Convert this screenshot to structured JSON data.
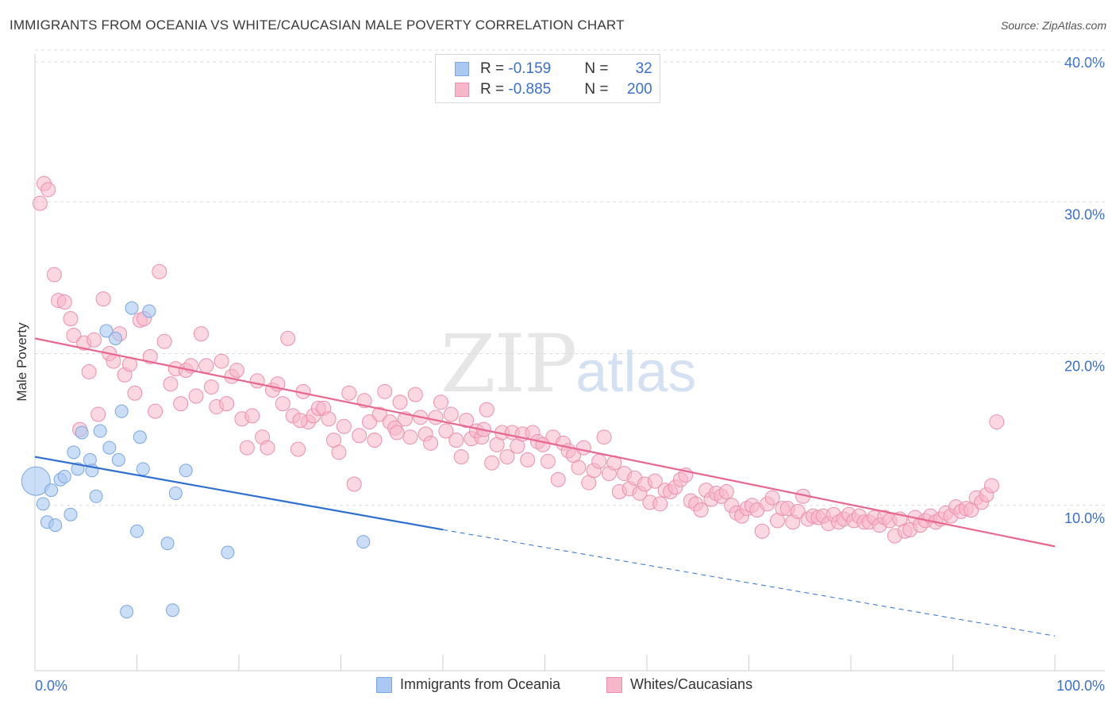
{
  "header": {
    "title": "IMMIGRANTS FROM OCEANIA VS WHITE/CAUCASIAN MALE POVERTY CORRELATION CHART",
    "source": "Source: ZipAtlas.com"
  },
  "legend_top": {
    "rows": [
      {
        "r_label": "R = ",
        "r_value": "-0.159",
        "n_label": "N = ",
        "n_value": "32"
      },
      {
        "r_label": "R = ",
        "r_value": "-0.885",
        "n_label": "N = ",
        "n_value": "200"
      }
    ]
  },
  "watermark": {
    "zip": "ZIP",
    "atlas": "atlas"
  },
  "colors": {
    "blue_fill": "#a9c8f2",
    "blue_stroke": "#7aa7e0",
    "blue_line": "#2f6fd1",
    "pink_fill": "#f7b7cb",
    "pink_stroke": "#ec8fae",
    "pink_line": "#e8678f",
    "grid": "#dcdcdc",
    "tick_label": "#3a6fd0"
  },
  "chart_data": {
    "type": "scatter",
    "title": "IMMIGRANTS FROM OCEANIA VS WHITE/CAUCASIAN MALE POVERTY CORRELATION CHART",
    "xlabel": "",
    "ylabel": "Male Poverty",
    "xlim": [
      0,
      100
    ],
    "ylim": [
      0,
      40
    ],
    "x_tick_labels": [
      "0.0%",
      "100.0%"
    ],
    "y_ticks": [
      10,
      20,
      30,
      40
    ],
    "y_tick_labels": [
      "10.0%",
      "20.0%",
      "30.0%",
      "40.0%"
    ],
    "legend": [
      "Immigrants from Oceania",
      "Whites/Caucasians"
    ],
    "series": [
      {
        "name": "Immigrants from Oceania",
        "color": "#a9c8f2",
        "points": [
          [
            0.1,
            11.6
          ],
          [
            0.8,
            10.1
          ],
          [
            1.2,
            8.9
          ],
          [
            1.6,
            11.0
          ],
          [
            2.0,
            8.7
          ],
          [
            2.5,
            11.7
          ],
          [
            2.9,
            11.9
          ],
          [
            3.5,
            9.4
          ],
          [
            3.8,
            13.5
          ],
          [
            4.2,
            12.4
          ],
          [
            4.6,
            14.8
          ],
          [
            5.4,
            13.0
          ],
          [
            5.6,
            12.3
          ],
          [
            6.0,
            10.6
          ],
          [
            6.4,
            14.9
          ],
          [
            7.0,
            21.5
          ],
          [
            7.3,
            13.8
          ],
          [
            7.9,
            21.0
          ],
          [
            8.2,
            13.0
          ],
          [
            8.5,
            16.2
          ],
          [
            9.0,
            3.0
          ],
          [
            9.5,
            23.0
          ],
          [
            10.0,
            8.3
          ],
          [
            10.3,
            14.5
          ],
          [
            10.6,
            12.4
          ],
          [
            11.2,
            22.8
          ],
          [
            13.0,
            7.5
          ],
          [
            13.5,
            3.1
          ],
          [
            13.8,
            10.8
          ],
          [
            14.8,
            12.3
          ],
          [
            18.9,
            6.9
          ],
          [
            32.2,
            7.6
          ]
        ],
        "trend": {
          "x0": 0,
          "y0": 13.2,
          "x1": 40,
          "y1": 8.4,
          "dash_to_x": 100,
          "dash_to_y": 1.4
        }
      },
      {
        "name": "Whites/Caucasians",
        "color": "#f7b7cb",
        "points": [
          [
            0.5,
            29.9
          ],
          [
            0.9,
            31.2
          ],
          [
            1.3,
            30.8
          ],
          [
            1.9,
            25.2
          ],
          [
            2.3,
            23.5
          ],
          [
            2.9,
            23.4
          ],
          [
            3.5,
            22.3
          ],
          [
            3.8,
            21.2
          ],
          [
            4.4,
            15.0
          ],
          [
            4.8,
            20.7
          ],
          [
            5.3,
            18.8
          ],
          [
            5.8,
            20.9
          ],
          [
            6.2,
            16.0
          ],
          [
            6.7,
            23.6
          ],
          [
            7.3,
            20.0
          ],
          [
            7.7,
            19.5
          ],
          [
            8.3,
            21.3
          ],
          [
            8.8,
            18.6
          ],
          [
            9.3,
            19.3
          ],
          [
            9.8,
            17.4
          ],
          [
            10.3,
            22.2
          ],
          [
            10.7,
            22.3
          ],
          [
            11.3,
            19.8
          ],
          [
            11.8,
            16.2
          ],
          [
            12.2,
            25.4
          ],
          [
            12.7,
            20.8
          ],
          [
            13.3,
            18.0
          ],
          [
            13.8,
            19.0
          ],
          [
            14.3,
            16.7
          ],
          [
            14.8,
            18.9
          ],
          [
            15.3,
            19.2
          ],
          [
            15.8,
            17.2
          ],
          [
            16.3,
            21.3
          ],
          [
            16.8,
            19.2
          ],
          [
            17.3,
            17.8
          ],
          [
            17.8,
            16.5
          ],
          [
            18.3,
            19.5
          ],
          [
            18.8,
            16.7
          ],
          [
            19.3,
            18.5
          ],
          [
            19.8,
            18.9
          ],
          [
            20.3,
            15.7
          ],
          [
            20.8,
            13.8
          ],
          [
            21.3,
            15.9
          ],
          [
            21.8,
            18.2
          ],
          [
            22.3,
            14.5
          ],
          [
            22.8,
            13.8
          ],
          [
            23.3,
            17.6
          ],
          [
            23.8,
            18.0
          ],
          [
            24.3,
            16.7
          ],
          [
            24.8,
            21.0
          ],
          [
            25.3,
            15.9
          ],
          [
            25.8,
            13.7
          ],
          [
            26.3,
            17.5
          ],
          [
            26.8,
            15.5
          ],
          [
            27.3,
            15.9
          ],
          [
            27.8,
            16.4
          ],
          [
            28.3,
            16.4
          ],
          [
            28.8,
            15.7
          ],
          [
            29.3,
            14.3
          ],
          [
            29.8,
            13.5
          ],
          [
            30.3,
            15.2
          ],
          [
            30.8,
            17.4
          ],
          [
            31.3,
            11.4
          ],
          [
            31.8,
            14.6
          ],
          [
            32.3,
            16.9
          ],
          [
            32.8,
            15.5
          ],
          [
            33.3,
            14.3
          ],
          [
            33.8,
            16.0
          ],
          [
            34.3,
            17.5
          ],
          [
            34.8,
            15.5
          ],
          [
            35.3,
            15.1
          ],
          [
            35.8,
            16.8
          ],
          [
            36.3,
            15.7
          ],
          [
            36.8,
            14.5
          ],
          [
            37.3,
            17.3
          ],
          [
            37.8,
            15.8
          ],
          [
            38.3,
            14.7
          ],
          [
            38.8,
            14.1
          ],
          [
            39.3,
            15.8
          ],
          [
            39.8,
            16.8
          ],
          [
            40.3,
            14.9
          ],
          [
            40.8,
            16.0
          ],
          [
            41.3,
            14.3
          ],
          [
            41.8,
            13.2
          ],
          [
            42.3,
            15.6
          ],
          [
            42.8,
            14.4
          ],
          [
            43.3,
            14.9
          ],
          [
            43.8,
            14.5
          ],
          [
            44.3,
            16.3
          ],
          [
            44.8,
            12.8
          ],
          [
            45.3,
            14.0
          ],
          [
            45.8,
            14.8
          ],
          [
            46.3,
            13.2
          ],
          [
            46.8,
            14.8
          ],
          [
            47.3,
            13.9
          ],
          [
            47.8,
            14.7
          ],
          [
            48.3,
            13.0
          ],
          [
            48.8,
            14.8
          ],
          [
            49.3,
            14.2
          ],
          [
            49.8,
            14.0
          ],
          [
            50.3,
            12.9
          ],
          [
            50.8,
            14.5
          ],
          [
            51.3,
            11.7
          ],
          [
            51.8,
            14.1
          ],
          [
            52.3,
            13.6
          ],
          [
            52.8,
            13.3
          ],
          [
            53.3,
            12.5
          ],
          [
            53.8,
            13.8
          ],
          [
            54.3,
            11.5
          ],
          [
            54.8,
            12.3
          ],
          [
            55.3,
            12.9
          ],
          [
            55.8,
            14.5
          ],
          [
            56.3,
            12.1
          ],
          [
            56.8,
            12.8
          ],
          [
            57.3,
            10.9
          ],
          [
            57.8,
            12.1
          ],
          [
            58.3,
            11.1
          ],
          [
            58.8,
            11.8
          ],
          [
            59.3,
            10.8
          ],
          [
            59.8,
            11.4
          ],
          [
            60.3,
            10.2
          ],
          [
            60.8,
            11.6
          ],
          [
            61.3,
            10.1
          ],
          [
            61.8,
            11.0
          ],
          [
            62.3,
            10.9
          ],
          [
            62.8,
            11.2
          ],
          [
            63.3,
            11.7
          ],
          [
            63.8,
            12.0
          ],
          [
            64.3,
            10.3
          ],
          [
            64.8,
            10.1
          ],
          [
            65.3,
            9.7
          ],
          [
            65.8,
            11.0
          ],
          [
            66.3,
            10.4
          ],
          [
            66.8,
            10.8
          ],
          [
            67.3,
            10.6
          ],
          [
            67.8,
            10.9
          ],
          [
            68.3,
            10.0
          ],
          [
            68.8,
            9.5
          ],
          [
            69.3,
            9.3
          ],
          [
            69.8,
            9.8
          ],
          [
            70.3,
            10.0
          ],
          [
            70.8,
            9.7
          ],
          [
            71.3,
            8.3
          ],
          [
            71.8,
            10.1
          ],
          [
            72.3,
            10.5
          ],
          [
            72.8,
            9.0
          ],
          [
            73.3,
            9.8
          ],
          [
            73.8,
            9.8
          ],
          [
            74.3,
            8.9
          ],
          [
            74.8,
            9.6
          ],
          [
            75.3,
            10.6
          ],
          [
            75.8,
            9.1
          ],
          [
            76.3,
            9.3
          ],
          [
            76.8,
            9.2
          ],
          [
            77.3,
            9.3
          ],
          [
            77.8,
            8.8
          ],
          [
            78.3,
            9.4
          ],
          [
            78.8,
            8.9
          ],
          [
            79.3,
            9.1
          ],
          [
            79.8,
            9.4
          ],
          [
            80.3,
            9.0
          ],
          [
            80.8,
            9.3
          ],
          [
            81.3,
            8.9
          ],
          [
            81.8,
            8.9
          ],
          [
            82.3,
            9.2
          ],
          [
            82.8,
            8.7
          ],
          [
            83.3,
            9.2
          ],
          [
            83.8,
            9.0
          ],
          [
            84.3,
            8.0
          ],
          [
            84.8,
            9.1
          ],
          [
            85.3,
            8.3
          ],
          [
            85.8,
            8.4
          ],
          [
            86.3,
            9.2
          ],
          [
            86.8,
            8.7
          ],
          [
            87.3,
            9.0
          ],
          [
            87.8,
            9.3
          ],
          [
            88.3,
            8.9
          ],
          [
            88.8,
            9.1
          ],
          [
            89.3,
            9.5
          ],
          [
            89.8,
            9.3
          ],
          [
            90.3,
            9.9
          ],
          [
            90.8,
            9.6
          ],
          [
            91.3,
            9.8
          ],
          [
            91.8,
            9.7
          ],
          [
            92.3,
            10.5
          ],
          [
            92.8,
            10.2
          ],
          [
            93.3,
            10.7
          ],
          [
            93.8,
            11.3
          ],
          [
            94.3,
            15.5
          ],
          [
            44.0,
            15.0
          ],
          [
            26.0,
            15.6
          ],
          [
            35.5,
            14.8
          ]
        ],
        "trend": {
          "x0": 0,
          "y0": 21.0,
          "x1": 100,
          "y1": 7.3
        }
      }
    ]
  },
  "legend_bottom": {
    "items": [
      {
        "label": "Immigrants from Oceania"
      },
      {
        "label": "Whites/Caucasians"
      }
    ]
  }
}
